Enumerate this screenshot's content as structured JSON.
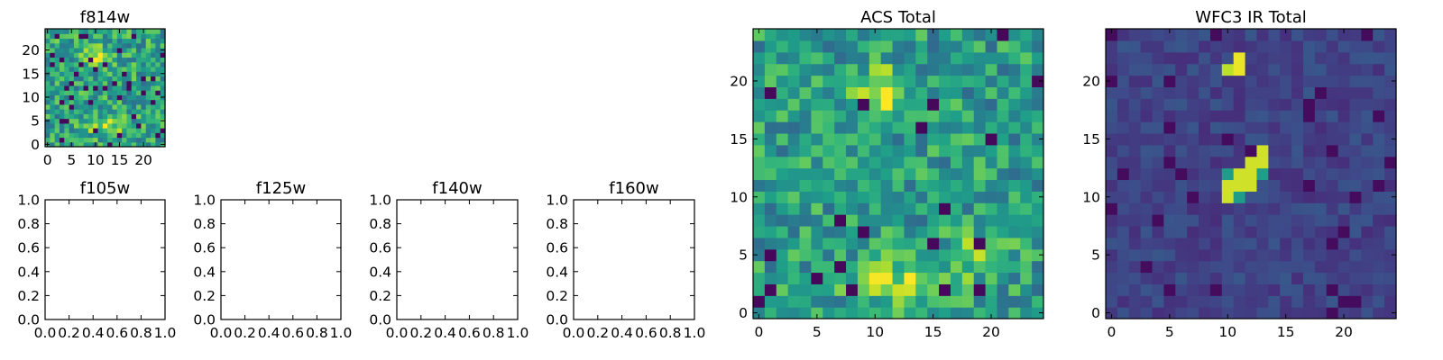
{
  "chart_data": [
    {
      "type": "heatmap",
      "title": "f814w",
      "colormap": "viridis",
      "xlim": [
        -0.5,
        24.5
      ],
      "ylim": [
        -0.5,
        24.5
      ],
      "xticks": [
        0,
        5,
        10,
        15,
        20
      ],
      "yticks": [
        0,
        5,
        10,
        15,
        20
      ],
      "grid_size": [
        25,
        25
      ],
      "regions": [
        {
          "label": "bright blob",
          "x": 10,
          "y": 19,
          "level": "high"
        },
        {
          "label": "bright band",
          "x": 12,
          "y": 4,
          "level": "high"
        }
      ]
    },
    {
      "type": "empty",
      "title": "f105w",
      "xlim": [
        0.0,
        1.0
      ],
      "ylim": [
        0.0,
        1.0
      ],
      "xticks": [
        "0.0",
        "0.2",
        "0.4",
        "0.6",
        "0.8",
        "1.0"
      ],
      "yticks": [
        "0.0",
        "0.2",
        "0.4",
        "0.6",
        "0.8",
        "1.0"
      ]
    },
    {
      "type": "empty",
      "title": "f125w",
      "xlim": [
        0.0,
        1.0
      ],
      "ylim": [
        0.0,
        1.0
      ],
      "xticks": [
        "0.0",
        "0.2",
        "0.4",
        "0.6",
        "0.8",
        "1.0"
      ],
      "yticks": [
        "0.0",
        "0.2",
        "0.4",
        "0.6",
        "0.8",
        "1.0"
      ]
    },
    {
      "type": "empty",
      "title": "f140w",
      "xlim": [
        0.0,
        1.0
      ],
      "ylim": [
        0.0,
        1.0
      ],
      "xticks": [
        "0.0",
        "0.2",
        "0.4",
        "0.6",
        "0.8",
        "1.0"
      ],
      "yticks": [
        "0.0",
        "0.2",
        "0.4",
        "0.6",
        "0.8",
        "1.0"
      ]
    },
    {
      "type": "empty",
      "title": "f160w",
      "xlim": [
        0.0,
        1.0
      ],
      "ylim": [
        0.0,
        1.0
      ],
      "xticks": [
        "0.0",
        "0.2",
        "0.4",
        "0.6",
        "0.8",
        "1.0"
      ],
      "yticks": [
        "0.0",
        "0.2",
        "0.4",
        "0.6",
        "0.8",
        "1.0"
      ]
    },
    {
      "type": "heatmap",
      "title": "ACS Total",
      "colormap": "viridis",
      "xlim": [
        -0.5,
        24.5
      ],
      "ylim": [
        -0.5,
        24.5
      ],
      "xticks": [
        0,
        5,
        10,
        15,
        20
      ],
      "yticks": [
        0,
        5,
        10,
        15,
        20
      ],
      "grid_size": [
        25,
        25
      ],
      "regions": [
        {
          "label": "bright blob",
          "x": 10,
          "y": 19,
          "level": "high"
        },
        {
          "label": "bright band",
          "x": 12,
          "y": 3,
          "level": "high"
        },
        {
          "label": "bright patch",
          "x": 19,
          "y": 5,
          "level": "high"
        }
      ]
    },
    {
      "type": "heatmap",
      "title": "WFC3 IR Total",
      "colormap": "viridis",
      "xlim": [
        -0.5,
        24.5
      ],
      "ylim": [
        -0.5,
        24.5
      ],
      "xticks": [
        0,
        5,
        10,
        15,
        20
      ],
      "yticks": [
        0,
        5,
        10,
        15,
        20
      ],
      "grid_size": [
        25,
        25
      ],
      "regions": [
        {
          "label": "bright pixels",
          "x": 11,
          "y": 22,
          "level": "high"
        },
        {
          "label": "bright diagonal streak",
          "x": 12,
          "y": 12,
          "level": "high"
        }
      ]
    }
  ]
}
